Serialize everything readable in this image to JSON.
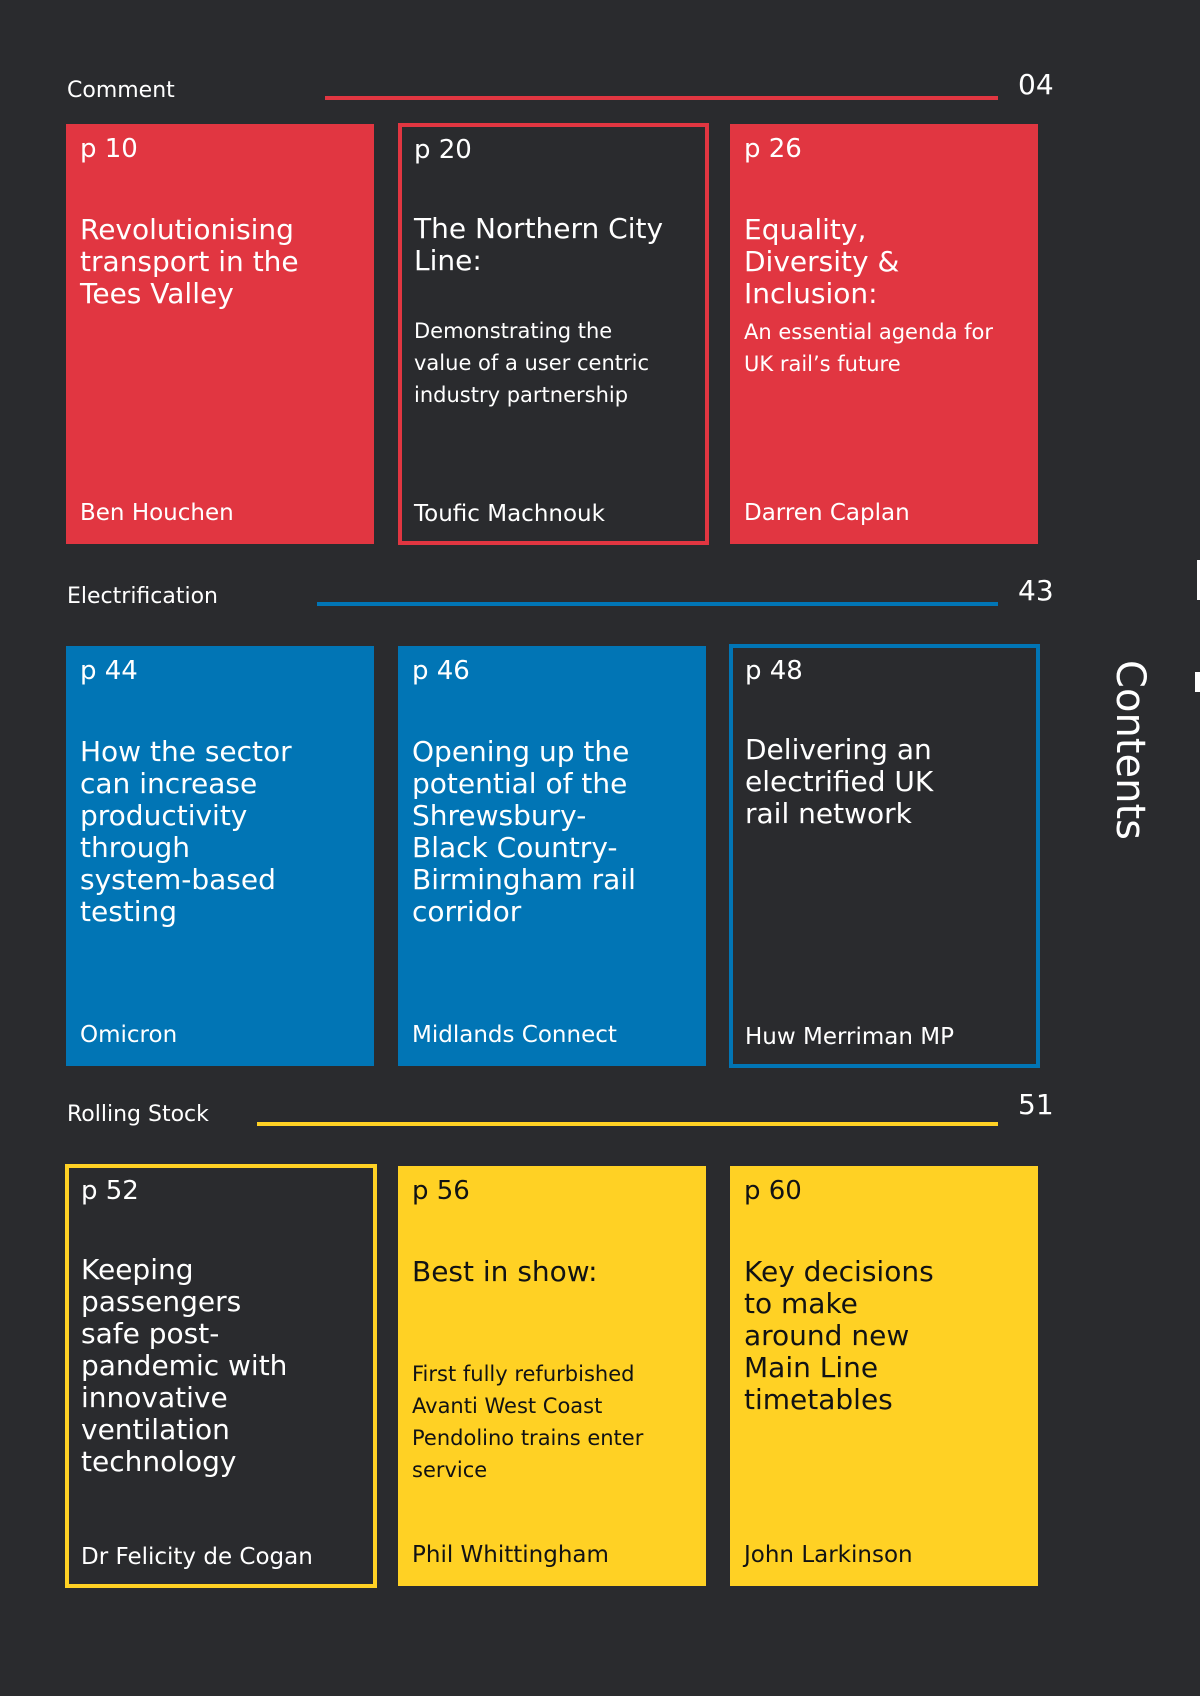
{
  "side_title": "Contents",
  "colors": {
    "background": "#2a2b2e",
    "red": "#e13641",
    "blue": "#0175b5",
    "yellow": "#ffd124"
  },
  "sections": [
    {
      "label": "Comment",
      "number": "04",
      "color": "#e13641",
      "cards": [
        {
          "page": "p 10",
          "title": "Revolutionising transport in the Tees Valley",
          "subtitle": "",
          "author": "Ben Houchen",
          "style": "filled"
        },
        {
          "page": "p 20",
          "title": "The Northern City Line:",
          "subtitle": "Demonstrating the value of a user centric industry partnership",
          "author": "Toufic Machnouk",
          "style": "outline"
        },
        {
          "page": "p 26",
          "title": "Equality, Diversity & Inclusion:",
          "subtitle": "An essential agenda for UK rail’s future",
          "author": "Darren Caplan",
          "style": "filled"
        }
      ]
    },
    {
      "label": "Electrification",
      "number": "43",
      "color": "#0175b5",
      "cards": [
        {
          "page": "p 44",
          "title": "How the sector can increase productivity through system-based testing",
          "subtitle": "",
          "author": "Omicron",
          "style": "filled"
        },
        {
          "page": "p 46",
          "title": "Opening up the potential of the Shrewsbury-Black Country-Birmingham rail corridor",
          "subtitle": "",
          "author": "Midlands Connect",
          "style": "filled"
        },
        {
          "page": "p 48",
          "title": "Delivering an electrified UK rail network",
          "subtitle": "",
          "author": "Huw Merriman MP",
          "style": "outline"
        }
      ]
    },
    {
      "label": "Rolling Stock",
      "number": "51",
      "color": "#ffd124",
      "cards": [
        {
          "page": "p 52",
          "title": "Keeping passengers safe post-pandemic with innovative ventilation technology",
          "subtitle": "",
          "author": "Dr Felicity de Cogan",
          "style": "outline"
        },
        {
          "page": "p 56",
          "title": "Best in show:",
          "subtitle": "First fully refurbished Avanti West Coast Pendolino trains enter service",
          "author": "Phil Whittingham",
          "style": "filled"
        },
        {
          "page": "p 60",
          "title": "Key decisions to make around new Main Line timetables",
          "subtitle": "",
          "author": "John Larkinson",
          "style": "filled"
        }
      ]
    }
  ]
}
